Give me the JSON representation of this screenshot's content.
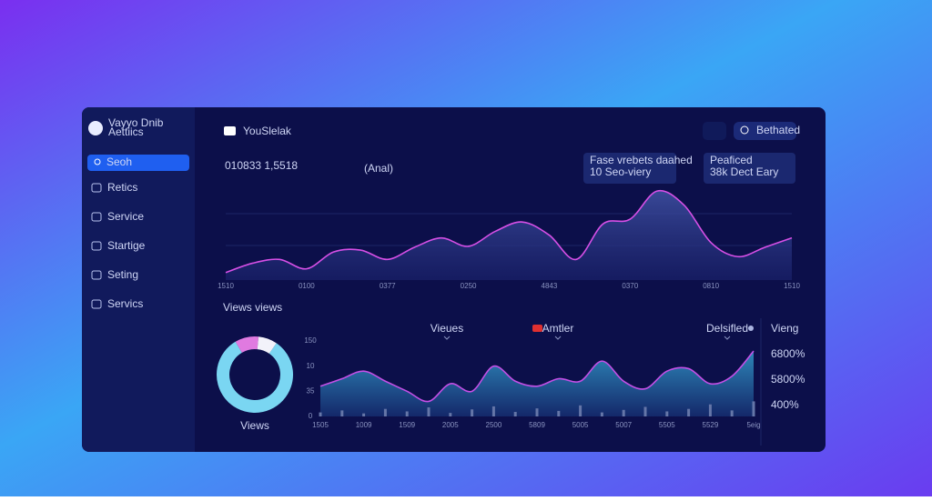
{
  "sidebar": {
    "brand": [
      "Vayyo Dnib",
      "Aettiics"
    ],
    "search": "Seoh",
    "nav": [
      "Retics",
      "Service",
      "Startige",
      "Seting",
      "Servics"
    ]
  },
  "header": {
    "title": "YouSlelak",
    "button": "Bethated",
    "headline": "010833 1,5518",
    "headline_note": "(Anal)"
  },
  "cards": [
    {
      "label": "Fase vrebets daahed",
      "value": "10 Seo-viery"
    },
    {
      "label": "Peaficed",
      "value": "38k Dect Eary"
    }
  ],
  "section_title": "Views views",
  "chart_data": [
    {
      "type": "area",
      "color": "#d64fe6",
      "ylim": [
        0,
        100
      ],
      "categories": [
        "1510",
        null,
        null,
        "0100",
        null,
        null,
        "0377",
        null,
        null,
        "0250",
        null,
        null,
        "4843",
        null,
        null,
        "0370",
        null,
        null,
        "0810",
        null,
        null,
        "1510"
      ],
      "values": [
        8,
        18,
        22,
        12,
        30,
        32,
        22,
        35,
        45,
        36,
        52,
        62,
        48,
        22,
        60,
        65,
        95,
        80,
        40,
        25,
        35,
        45
      ]
    },
    {
      "type": "pie",
      "label": "Views",
      "values": [
        82,
        10,
        8
      ],
      "colors": [
        "#7ad6f2",
        "#e07ae0",
        "#f2f2fa"
      ]
    },
    {
      "type": "combo",
      "legend": [
        "Vieues",
        "Amtler",
        "Delsifled"
      ],
      "y_labels": [
        "150",
        "10",
        "35",
        "0"
      ],
      "ylim": [
        0,
        150
      ],
      "side_title": "Vieng",
      "side_labels": [
        "6800%",
        "5800%",
        "400%"
      ],
      "categories": [
        "1505",
        null,
        "1009",
        null,
        "1509",
        null,
        "2005",
        null,
        "2500",
        null,
        "5809",
        null,
        "5005",
        null,
        "5007",
        null,
        "5505",
        null,
        "5529",
        null,
        "5eig"
      ],
      "series": [
        {
          "type": "area",
          "color": "#c44fe6",
          "values": [
            60,
            75,
            90,
            70,
            50,
            30,
            65,
            50,
            100,
            70,
            60,
            75,
            70,
            110,
            70,
            55,
            90,
            95,
            65,
            80,
            130
          ]
        },
        {
          "type": "bar",
          "color": "#6576a8",
          "values": [
            8,
            12,
            6,
            15,
            10,
            18,
            7,
            14,
            20,
            9,
            16,
            11,
            22,
            8,
            13,
            19,
            10,
            15,
            24,
            12,
            30
          ]
        }
      ]
    }
  ]
}
